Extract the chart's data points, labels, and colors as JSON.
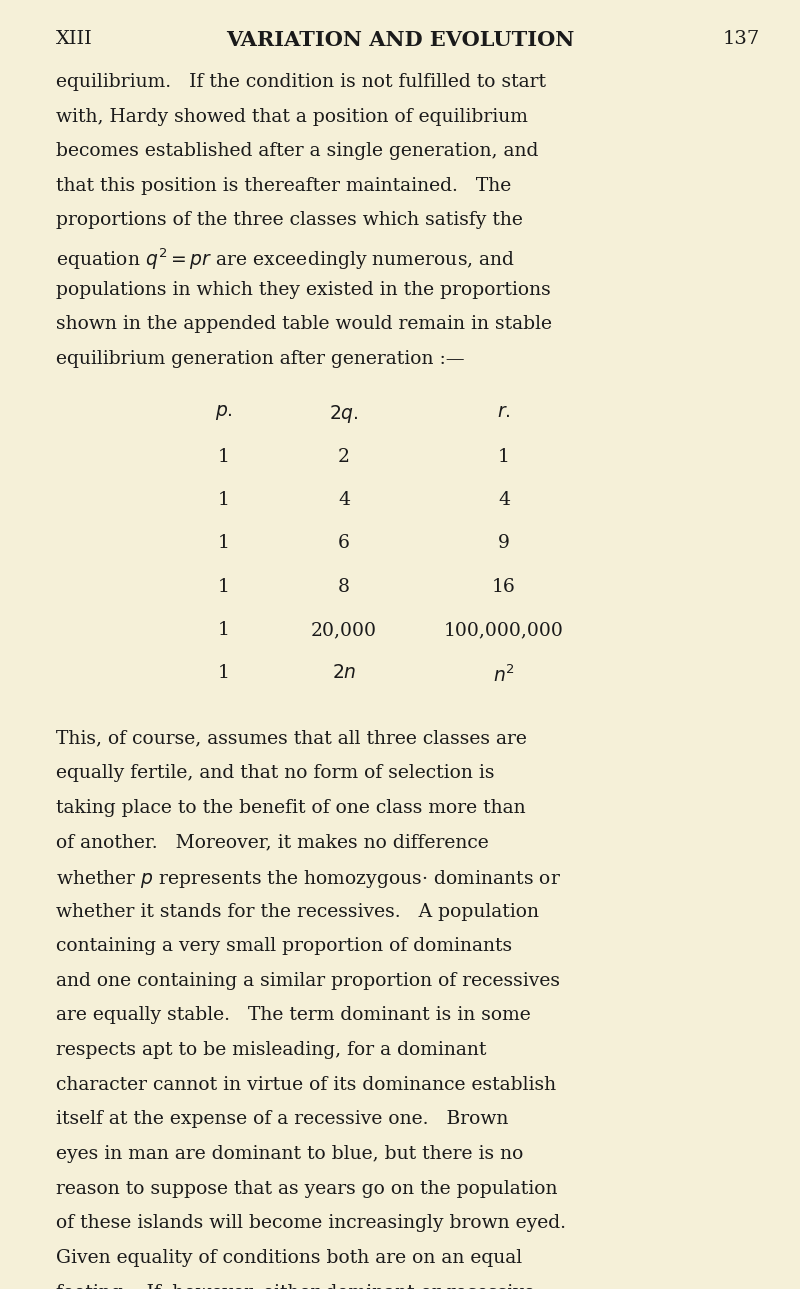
{
  "background_color": "#f5f0d8",
  "text_color": "#1a1a1a",
  "page_width": 8.0,
  "page_height": 12.89,
  "header_chapter": "XIII",
  "header_title": "VARIATION AND EVOLUTION",
  "header_page": "137",
  "paragraphs": [
    "equilibrium.  If the condition is not fulfilled to start with, Hardy showed that a position of equilibrium becomes established after a single generation, and that this position is thereafter maintained.  The proportions of the three classes which satisfy the equation $q^2=pr$ are exceedingly numerous, and populations in which they existed in the proportions shown in the appended table would remain in stable equilibrium generation after generation :—",
    "This, of course, assumes that all three classes are equally fertile, and that no form of selection is taking place to the benefit of one class more than of another.  Moreover, it makes no difference whether $p$ represents the homozygous· dominants or whether it stands for the recessives.  A population containing a very small proportion of dominants and one containing a similar proportion of recessives are equally stable.  The term dominant is in some respects apt to be misleading, for a dominant character cannot in virtue of its dominance establish itself at the expense of a recessive one.  Brown eyes in man are dominant to blue, but there is no reason to suppose that as years go on the population of these islands will become increasingly brown eyed. Given equality of conditions both are on an equal footing.  If, however, either dominant or recessive"
  ],
  "table_header": [
    "$p.$",
    "$2q.$",
    "$r.$"
  ],
  "table_rows": [
    [
      "1",
      "2",
      "1"
    ],
    [
      "1",
      "4",
      "4"
    ],
    [
      "1",
      "6",
      "9"
    ],
    [
      "1",
      "8",
      "16"
    ],
    [
      "1",
      "20,000",
      "100,000,000"
    ],
    [
      "1",
      "$2n$",
      "$n^2$"
    ]
  ],
  "font_size_body": 13.5,
  "font_size_header": 14,
  "font_size_table": 13.5
}
